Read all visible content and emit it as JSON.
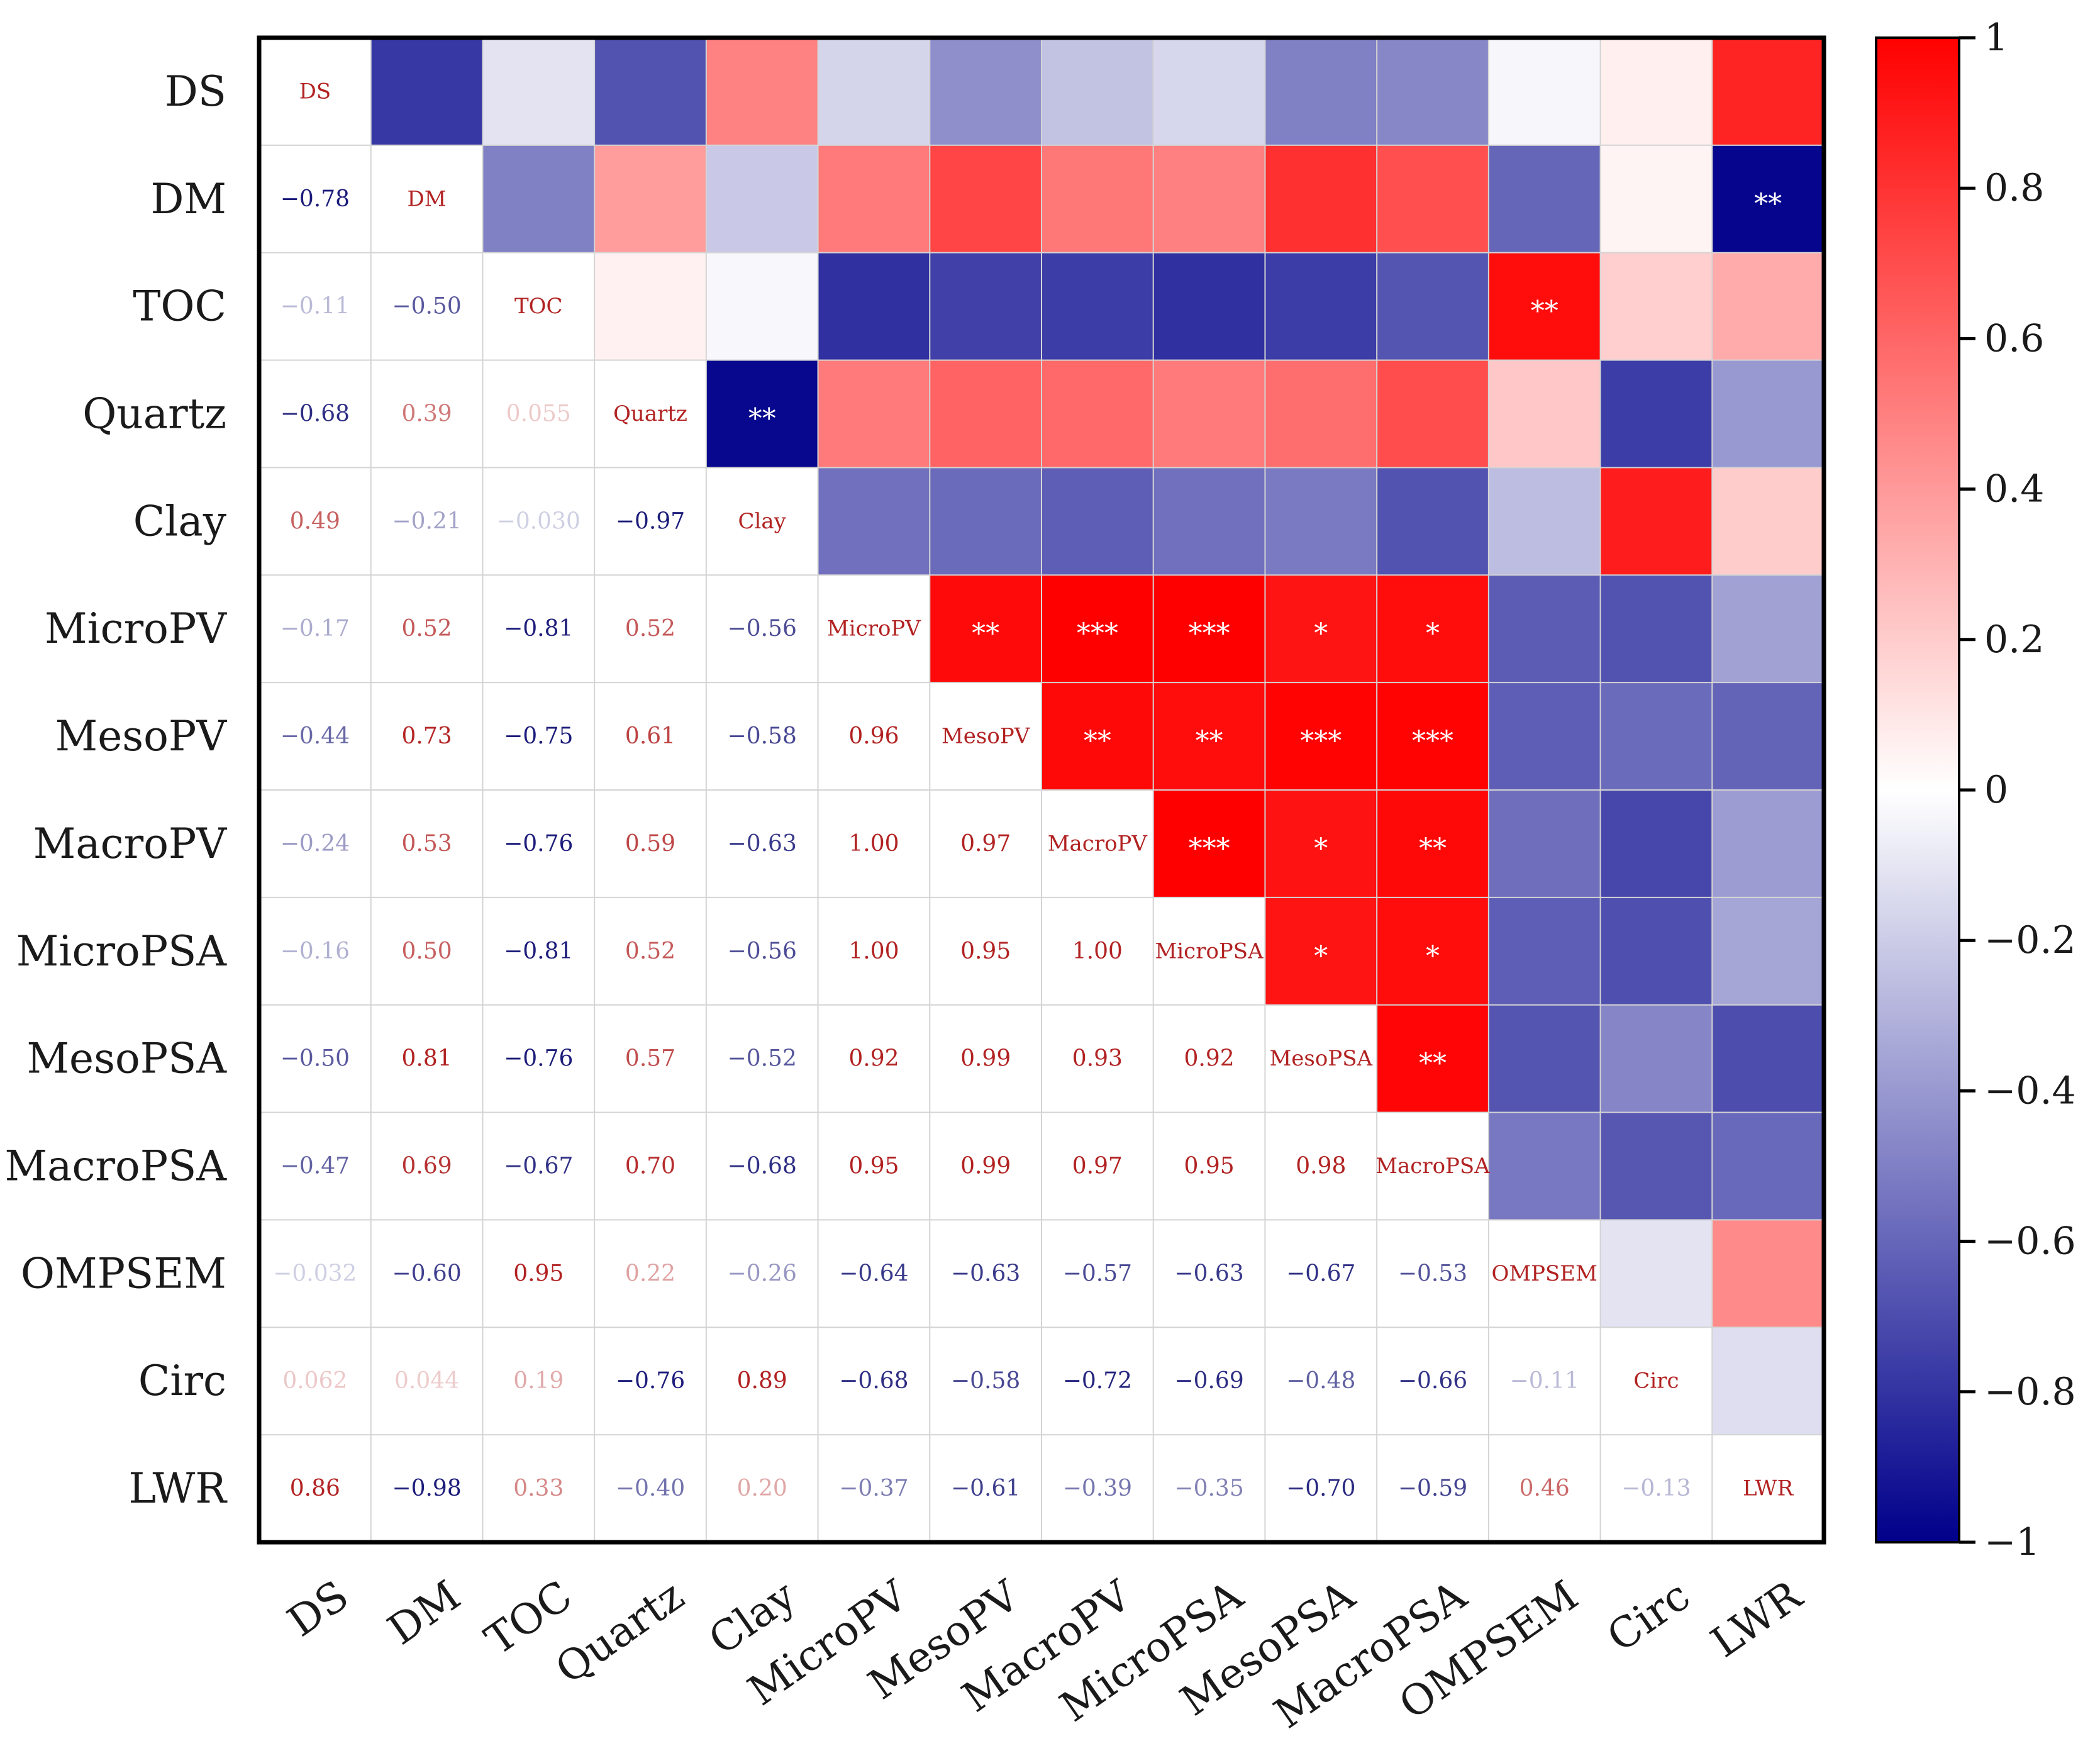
{
  "chart_data": {
    "type": "heatmap",
    "subtype": "correlation-matrix",
    "title": "",
    "variables": [
      "DS",
      "DM",
      "TOC",
      "Quartz",
      "Clay",
      "MicroPV",
      "MesoPV",
      "MacroPV",
      "MicroPSA",
      "MesoPSA",
      "MacroPSA",
      "OMPSEM",
      "Circ",
      "LWR"
    ],
    "lower_triangle_values": [
      [],
      [
        "-0.78"
      ],
      [
        "-0.11",
        "-0.50"
      ],
      [
        "-0.68",
        "0.39",
        "0.055"
      ],
      [
        "0.49",
        "-0.21",
        "-0.030",
        "-0.97"
      ],
      [
        "-0.17",
        "0.52",
        "-0.81",
        "0.52",
        "-0.56"
      ],
      [
        "-0.44",
        "0.73",
        "-0.75",
        "0.61",
        "-0.58",
        "0.96"
      ],
      [
        "-0.24",
        "0.53",
        "-0.76",
        "0.59",
        "-0.63",
        "1.00",
        "0.97"
      ],
      [
        "-0.16",
        "0.50",
        "-0.81",
        "0.52",
        "-0.56",
        "1.00",
        "0.95",
        "1.00"
      ],
      [
        "-0.50",
        "0.81",
        "-0.76",
        "0.57",
        "-0.52",
        "0.92",
        "0.99",
        "0.93",
        "0.92"
      ],
      [
        "-0.47",
        "0.69",
        "-0.67",
        "0.70",
        "-0.68",
        "0.95",
        "0.99",
        "0.97",
        "0.95",
        "0.98"
      ],
      [
        "-0.032",
        "-0.60",
        "0.95",
        "0.22",
        "-0.26",
        "-0.64",
        "-0.63",
        "-0.57",
        "-0.63",
        "-0.67",
        "-0.53"
      ],
      [
        "0.062",
        "0.044",
        "0.19",
        "-0.76",
        "0.89",
        "-0.68",
        "-0.58",
        "-0.72",
        "-0.69",
        "-0.48",
        "-0.66",
        "-0.11"
      ],
      [
        "0.86",
        "-0.98",
        "0.33",
        "-0.40",
        "0.20",
        "-0.37",
        "-0.61",
        "-0.39",
        "-0.35",
        "-0.70",
        "-0.59",
        "0.46",
        "-0.13"
      ]
    ],
    "significance_marks": [
      {
        "row": "DM",
        "col": "LWR",
        "mark": "**"
      },
      {
        "row": "TOC",
        "col": "OMPSEM",
        "mark": "**"
      },
      {
        "row": "Quartz",
        "col": "Clay",
        "mark": "**"
      },
      {
        "row": "MicroPV",
        "col": "MesoPV",
        "mark": "**"
      },
      {
        "row": "MicroPV",
        "col": "MacroPV",
        "mark": "***"
      },
      {
        "row": "MicroPV",
        "col": "MicroPSA",
        "mark": "***"
      },
      {
        "row": "MicroPV",
        "col": "MesoPSA",
        "mark": "*"
      },
      {
        "row": "MicroPV",
        "col": "MacroPSA",
        "mark": "*"
      },
      {
        "row": "MesoPV",
        "col": "MacroPV",
        "mark": "**"
      },
      {
        "row": "MesoPV",
        "col": "MicroPSA",
        "mark": "**"
      },
      {
        "row": "MesoPV",
        "col": "MesoPSA",
        "mark": "***"
      },
      {
        "row": "MesoPV",
        "col": "MacroPSA",
        "mark": "***"
      },
      {
        "row": "MacroPV",
        "col": "MicroPSA",
        "mark": "***"
      },
      {
        "row": "MacroPV",
        "col": "MesoPSA",
        "mark": "*"
      },
      {
        "row": "MacroPV",
        "col": "MacroPSA",
        "mark": "**"
      },
      {
        "row": "MicroPSA",
        "col": "MesoPSA",
        "mark": "*"
      },
      {
        "row": "MicroPSA",
        "col": "MacroPSA",
        "mark": "*"
      },
      {
        "row": "MesoPSA",
        "col": "MacroPSA",
        "mark": "**"
      }
    ],
    "colorbar": {
      "range": [
        -1,
        1
      ],
      "ticks": [
        "1",
        "0.8",
        "0.6",
        "0.4",
        "0.2",
        "0",
        "−0.2",
        "−0.4",
        "−0.6",
        "−0.8",
        "−1"
      ],
      "tick_values": [
        1,
        0.8,
        0.6,
        0.4,
        0.2,
        0,
        -0.2,
        -0.4,
        -0.6,
        -0.8,
        -1
      ],
      "colors": {
        "negative": "#00008b",
        "zero": "#ffffff",
        "positive": "#ff0000"
      }
    }
  },
  "colors": {
    "diagonal_text": "#b22222",
    "positive_text": "#b22222",
    "negative_text": "#1c1c7a",
    "star_text": "#ffffff",
    "grid": "#d4d4d4",
    "frame": "#000000"
  }
}
